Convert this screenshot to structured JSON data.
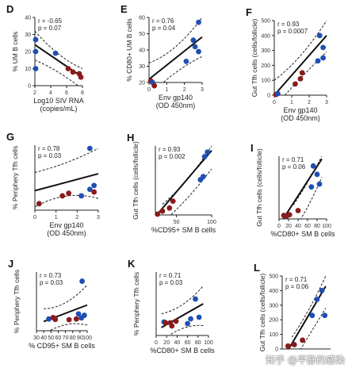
{
  "watermark": "知乎 @平静的感染",
  "colors": {
    "blue": "#1f4fb3",
    "red": "#8b1a1a",
    "black": "#111111"
  },
  "chart_data": [
    {
      "id": "D",
      "type": "scatter",
      "stats": [
        "r = -0.65",
        "p = 0.07"
      ],
      "xlabel": [
        "Log10 SIV RNA",
        "(copies/mL)"
      ],
      "ylabel": "% UM B cells",
      "xticks": [
        "2",
        "4",
        "6",
        "8"
      ],
      "yticks": [
        "0",
        "10",
        "20",
        "30",
        "40"
      ],
      "xlim": [
        2,
        8
      ],
      "ylim": [
        0,
        40
      ],
      "fit": [
        [
          2,
          24
        ],
        [
          8,
          5
        ]
      ],
      "ci_upper": [
        [
          2,
          32
        ],
        [
          5,
          16
        ],
        [
          8,
          10
        ]
      ],
      "ci_lower": [
        [
          2,
          15
        ],
        [
          5,
          9
        ],
        [
          8,
          -2
        ]
      ],
      "points": [
        {
          "x": 2.1,
          "y": 27,
          "c": "blue"
        },
        {
          "x": 2.1,
          "y": 20,
          "c": "blue"
        },
        {
          "x": 2.1,
          "y": 10,
          "c": "blue"
        },
        {
          "x": 4.6,
          "y": 19,
          "c": "blue"
        },
        {
          "x": 6.2,
          "y": 10,
          "c": "red"
        },
        {
          "x": 6.8,
          "y": 8,
          "c": "red"
        },
        {
          "x": 7.6,
          "y": 7,
          "c": "red"
        },
        {
          "x": 7.8,
          "y": 5,
          "c": "red"
        }
      ]
    },
    {
      "id": "E",
      "type": "scatter",
      "stats": [
        "r = 0.76",
        "p = 0.04"
      ],
      "xlabel": [
        "Env gp140",
        "(OD 450nm)"
      ],
      "ylabel": "% CD80+ UM B cells",
      "xticks": [
        "0",
        "1",
        "2",
        "3"
      ],
      "yticks": [
        "20",
        "30",
        "40",
        "50",
        "60"
      ],
      "xlim": [
        0,
        3
      ],
      "ylim": [
        20,
        60
      ],
      "fit": [
        [
          0,
          22
        ],
        [
          3,
          48
        ]
      ],
      "ci_upper": [
        [
          0,
          32
        ],
        [
          1.5,
          38
        ],
        [
          3,
          60
        ]
      ],
      "ci_lower": [
        [
          0,
          12
        ],
        [
          1.5,
          28
        ],
        [
          3,
          36
        ]
      ],
      "points": [
        {
          "x": 0.1,
          "y": 21,
          "c": "red"
        },
        {
          "x": 0.2,
          "y": 20,
          "c": "blue"
        },
        {
          "x": 0.3,
          "y": 18,
          "c": "red"
        },
        {
          "x": 2.1,
          "y": 33,
          "c": "blue"
        },
        {
          "x": 2.5,
          "y": 46,
          "c": "blue"
        },
        {
          "x": 2.6,
          "y": 42,
          "c": "blue"
        },
        {
          "x": 2.8,
          "y": 57,
          "c": "blue"
        },
        {
          "x": 2.8,
          "y": 39,
          "c": "blue"
        }
      ]
    },
    {
      "id": "F",
      "type": "scatter",
      "stats": [
        "r = 0.93",
        "p = 0.0007"
      ],
      "xlabel": [
        "Env gp140",
        "(OD 450nm)"
      ],
      "ylabel": "Gut Tfh cells (cells/follicle)",
      "xticks": [
        "0",
        "1",
        "2",
        "3"
      ],
      "yticks": [
        "0",
        "100",
        "200",
        "300",
        "400",
        "500"
      ],
      "xlim": [
        0,
        3
      ],
      "ylim": [
        0,
        500
      ],
      "fit": [
        [
          0,
          0
        ],
        [
          3,
          400
        ]
      ],
      "ci_upper": [
        [
          0,
          100
        ],
        [
          1.5,
          230
        ],
        [
          3,
          500
        ]
      ],
      "ci_lower": [
        [
          0,
          -80
        ],
        [
          1.5,
          120
        ],
        [
          3,
          290
        ]
      ],
      "points": [
        {
          "x": 0.1,
          "y": 5,
          "c": "red"
        },
        {
          "x": 0.2,
          "y": 10,
          "c": "blue"
        },
        {
          "x": 1.2,
          "y": 75,
          "c": "red"
        },
        {
          "x": 1.5,
          "y": 110,
          "c": "red"
        },
        {
          "x": 1.6,
          "y": 150,
          "c": "red"
        },
        {
          "x": 2.5,
          "y": 230,
          "c": "blue"
        },
        {
          "x": 2.6,
          "y": 400,
          "c": "blue"
        },
        {
          "x": 2.8,
          "y": 250,
          "c": "blue"
        },
        {
          "x": 2.8,
          "y": 320,
          "c": "blue"
        }
      ]
    },
    {
      "id": "G",
      "type": "scatter",
      "stats": [
        "r = 0.78",
        "p = 0.03"
      ],
      "xlabel": [
        "Env gp140",
        "(OD 450nm)"
      ],
      "ylabel": "% Periphery Tfh cells",
      "xticks": [
        "0",
        "1",
        "2",
        "3"
      ],
      "yticks": [],
      "xlim": [
        0,
        3
      ],
      "ylim": [
        0,
        10
      ],
      "fit": [
        [
          0,
          3
        ],
        [
          3,
          5.6
        ]
      ],
      "ci_upper": [
        [
          0,
          5.8
        ],
        [
          1.5,
          7
        ],
        [
          3,
          9.5
        ]
      ],
      "ci_lower": [
        [
          0,
          0.5
        ],
        [
          1.5,
          3.2
        ],
        [
          3,
          1.8
        ]
      ],
      "points": [
        {
          "x": 0.2,
          "y": 1,
          "c": "red"
        },
        {
          "x": 1.3,
          "y": 2.2,
          "c": "red"
        },
        {
          "x": 1.6,
          "y": 2.6,
          "c": "red"
        },
        {
          "x": 2.2,
          "y": 2.2,
          "c": "blue"
        },
        {
          "x": 2.6,
          "y": 3.2,
          "c": "blue"
        },
        {
          "x": 2.6,
          "y": 9.5,
          "c": "blue"
        },
        {
          "x": 2.8,
          "y": 3.8,
          "c": "blue"
        },
        {
          "x": 2.8,
          "y": 2.8,
          "c": "red"
        }
      ]
    },
    {
      "id": "H",
      "type": "scatter",
      "stats": [
        "r = 0.93",
        "p = 0.002"
      ],
      "xlabel": [
        "%CD95+ SM B cells"
      ],
      "ylabel": "Gut Tfh cells (cells/follicle)",
      "xticks": [
        "50",
        "100"
      ],
      "yticks": [],
      "xlim": [
        20,
        100
      ],
      "ylim": [
        0,
        450
      ],
      "fit": [
        [
          22,
          0
        ],
        [
          100,
          420
        ]
      ],
      "ci_upper": [
        [
          30,
          70
        ],
        [
          65,
          200
        ],
        [
          100,
          450
        ]
      ],
      "ci_lower": [
        [
          30,
          -50
        ],
        [
          65,
          90
        ],
        [
          100,
          300
        ]
      ],
      "points": [
        {
          "x": 23,
          "y": 5,
          "c": "red"
        },
        {
          "x": 30,
          "y": 25,
          "c": "red"
        },
        {
          "x": 40,
          "y": 45,
          "c": "red"
        },
        {
          "x": 45,
          "y": 90,
          "c": "red"
        },
        {
          "x": 84,
          "y": 230,
          "c": "blue"
        },
        {
          "x": 88,
          "y": 250,
          "c": "blue"
        },
        {
          "x": 90,
          "y": 380,
          "c": "blue"
        },
        {
          "x": 94,
          "y": 410,
          "c": "blue"
        }
      ]
    },
    {
      "id": "I",
      "type": "scatter",
      "stats": [
        "r = 0.71",
        "p = 0.06"
      ],
      "xlabel": [
        "%CD80+ SM B cells"
      ],
      "ylabel": "Gut Tfh cells (cells/follicle)",
      "xticks": [
        "0",
        "20",
        "40",
        "60",
        "80",
        "100"
      ],
      "yticks": [],
      "xlim": [
        0,
        100
      ],
      "ylim": [
        0,
        450
      ],
      "fit": [
        [
          5,
          -20
        ],
        [
          90,
          430
        ]
      ],
      "ci_upper": [
        [
          30,
          100
        ],
        [
          60,
          250
        ],
        [
          90,
          450
        ]
      ],
      "ci_lower": [
        [
          30,
          -80
        ],
        [
          60,
          60
        ],
        [
          90,
          300
        ]
      ],
      "points": [
        {
          "x": 10,
          "y": 25,
          "c": "red"
        },
        {
          "x": 16,
          "y": 20,
          "c": "red"
        },
        {
          "x": 22,
          "y": 30,
          "c": "red"
        },
        {
          "x": 40,
          "y": 60,
          "c": "red"
        },
        {
          "x": 68,
          "y": 230,
          "c": "blue"
        },
        {
          "x": 72,
          "y": 380,
          "c": "blue"
        },
        {
          "x": 80,
          "y": 320,
          "c": "blue"
        },
        {
          "x": 85,
          "y": 250,
          "c": "blue"
        }
      ]
    },
    {
      "id": "J",
      "type": "scatter",
      "stats": [
        "r = 0.73",
        "p = 0.03"
      ],
      "xlabel": [
        "% CD95+ SM B cells"
      ],
      "ylabel": "% Periphery Tfh cells",
      "xticks": [
        "30",
        "40",
        "50",
        "60",
        "70",
        "80",
        "90",
        "100"
      ],
      "yticks": [],
      "xlim": [
        30,
        100
      ],
      "ylim": [
        0,
        16
      ],
      "fit": [
        [
          40,
          2.5
        ],
        [
          100,
          7
        ]
      ],
      "ci_upper": [
        [
          40,
          6
        ],
        [
          70,
          6
        ],
        [
          100,
          12.5
        ]
      ],
      "ci_lower": [
        [
          40,
          -1
        ],
        [
          70,
          3
        ],
        [
          100,
          1.5
        ]
      ],
      "points": [
        {
          "x": 47,
          "y": 3.2,
          "c": "blue"
        },
        {
          "x": 53,
          "y": 3.6,
          "c": "red"
        },
        {
          "x": 56,
          "y": 3.1,
          "c": "red"
        },
        {
          "x": 75,
          "y": 3.0,
          "c": "red"
        },
        {
          "x": 85,
          "y": 3.2,
          "c": "red"
        },
        {
          "x": 88,
          "y": 4.6,
          "c": "blue"
        },
        {
          "x": 92,
          "y": 3.5,
          "c": "blue"
        },
        {
          "x": 93,
          "y": 13.5,
          "c": "blue"
        },
        {
          "x": 96,
          "y": 4.2,
          "c": "blue"
        }
      ]
    },
    {
      "id": "K",
      "type": "scatter",
      "stats": [
        "r = 0.71",
        "p = 0.03"
      ],
      "xlabel": [
        "%CD80+ SM B cells"
      ],
      "ylabel": "% Periphery Tfh cells",
      "xticks": [
        "0",
        "20",
        "40",
        "60",
        "80",
        "100"
      ],
      "yticks": [],
      "xlim": [
        0,
        100
      ],
      "ylim": [
        0,
        16
      ],
      "fit": [
        [
          10,
          2
        ],
        [
          90,
          8
        ]
      ],
      "ci_upper": [
        [
          10,
          5.5
        ],
        [
          50,
          6.5
        ],
        [
          90,
          12.5
        ]
      ],
      "ci_lower": [
        [
          10,
          -1.5
        ],
        [
          50,
          3
        ],
        [
          90,
          2.5
        ]
      ],
      "points": [
        {
          "x": 15,
          "y": 3.4,
          "c": "blue"
        },
        {
          "x": 18,
          "y": 3.2,
          "c": "red"
        },
        {
          "x": 27,
          "y": 3.2,
          "c": "red"
        },
        {
          "x": 30,
          "y": 2.4,
          "c": "red"
        },
        {
          "x": 38,
          "y": 3.6,
          "c": "red"
        },
        {
          "x": 60,
          "y": 3.0,
          "c": "blue"
        },
        {
          "x": 66,
          "y": 4.2,
          "c": "blue"
        },
        {
          "x": 75,
          "y": 9.2,
          "c": "blue"
        },
        {
          "x": 82,
          "y": 4.6,
          "c": "blue"
        }
      ]
    },
    {
      "id": "L",
      "type": "scatter",
      "stats": [
        "r = 0.71",
        "p = 0.06"
      ],
      "xlabel": [],
      "ylabel": "Gut Tfh cells (cells/follicle)",
      "xticks": [],
      "yticks": [
        "0",
        "100",
        "200",
        "300",
        "400",
        "500"
      ],
      "xlim": [
        0,
        100
      ],
      "ylim": [
        0,
        500
      ],
      "fit": [
        [
          10,
          -20
        ],
        [
          90,
          430
        ]
      ],
      "ci_upper": [
        [
          20,
          80
        ],
        [
          55,
          250
        ],
        [
          90,
          500
        ]
      ],
      "ci_lower": [
        [
          20,
          -100
        ],
        [
          55,
          90
        ],
        [
          90,
          280
        ]
      ],
      "points": [
        {
          "x": 12,
          "y": 20,
          "c": "red"
        },
        {
          "x": 25,
          "y": 30,
          "c": "red"
        },
        {
          "x": 42,
          "y": 60,
          "c": "red"
        },
        {
          "x": 62,
          "y": 230,
          "c": "blue"
        },
        {
          "x": 72,
          "y": 340,
          "c": "blue"
        },
        {
          "x": 82,
          "y": 400,
          "c": "blue"
        },
        {
          "x": 88,
          "y": 230,
          "c": "blue"
        }
      ]
    }
  ]
}
